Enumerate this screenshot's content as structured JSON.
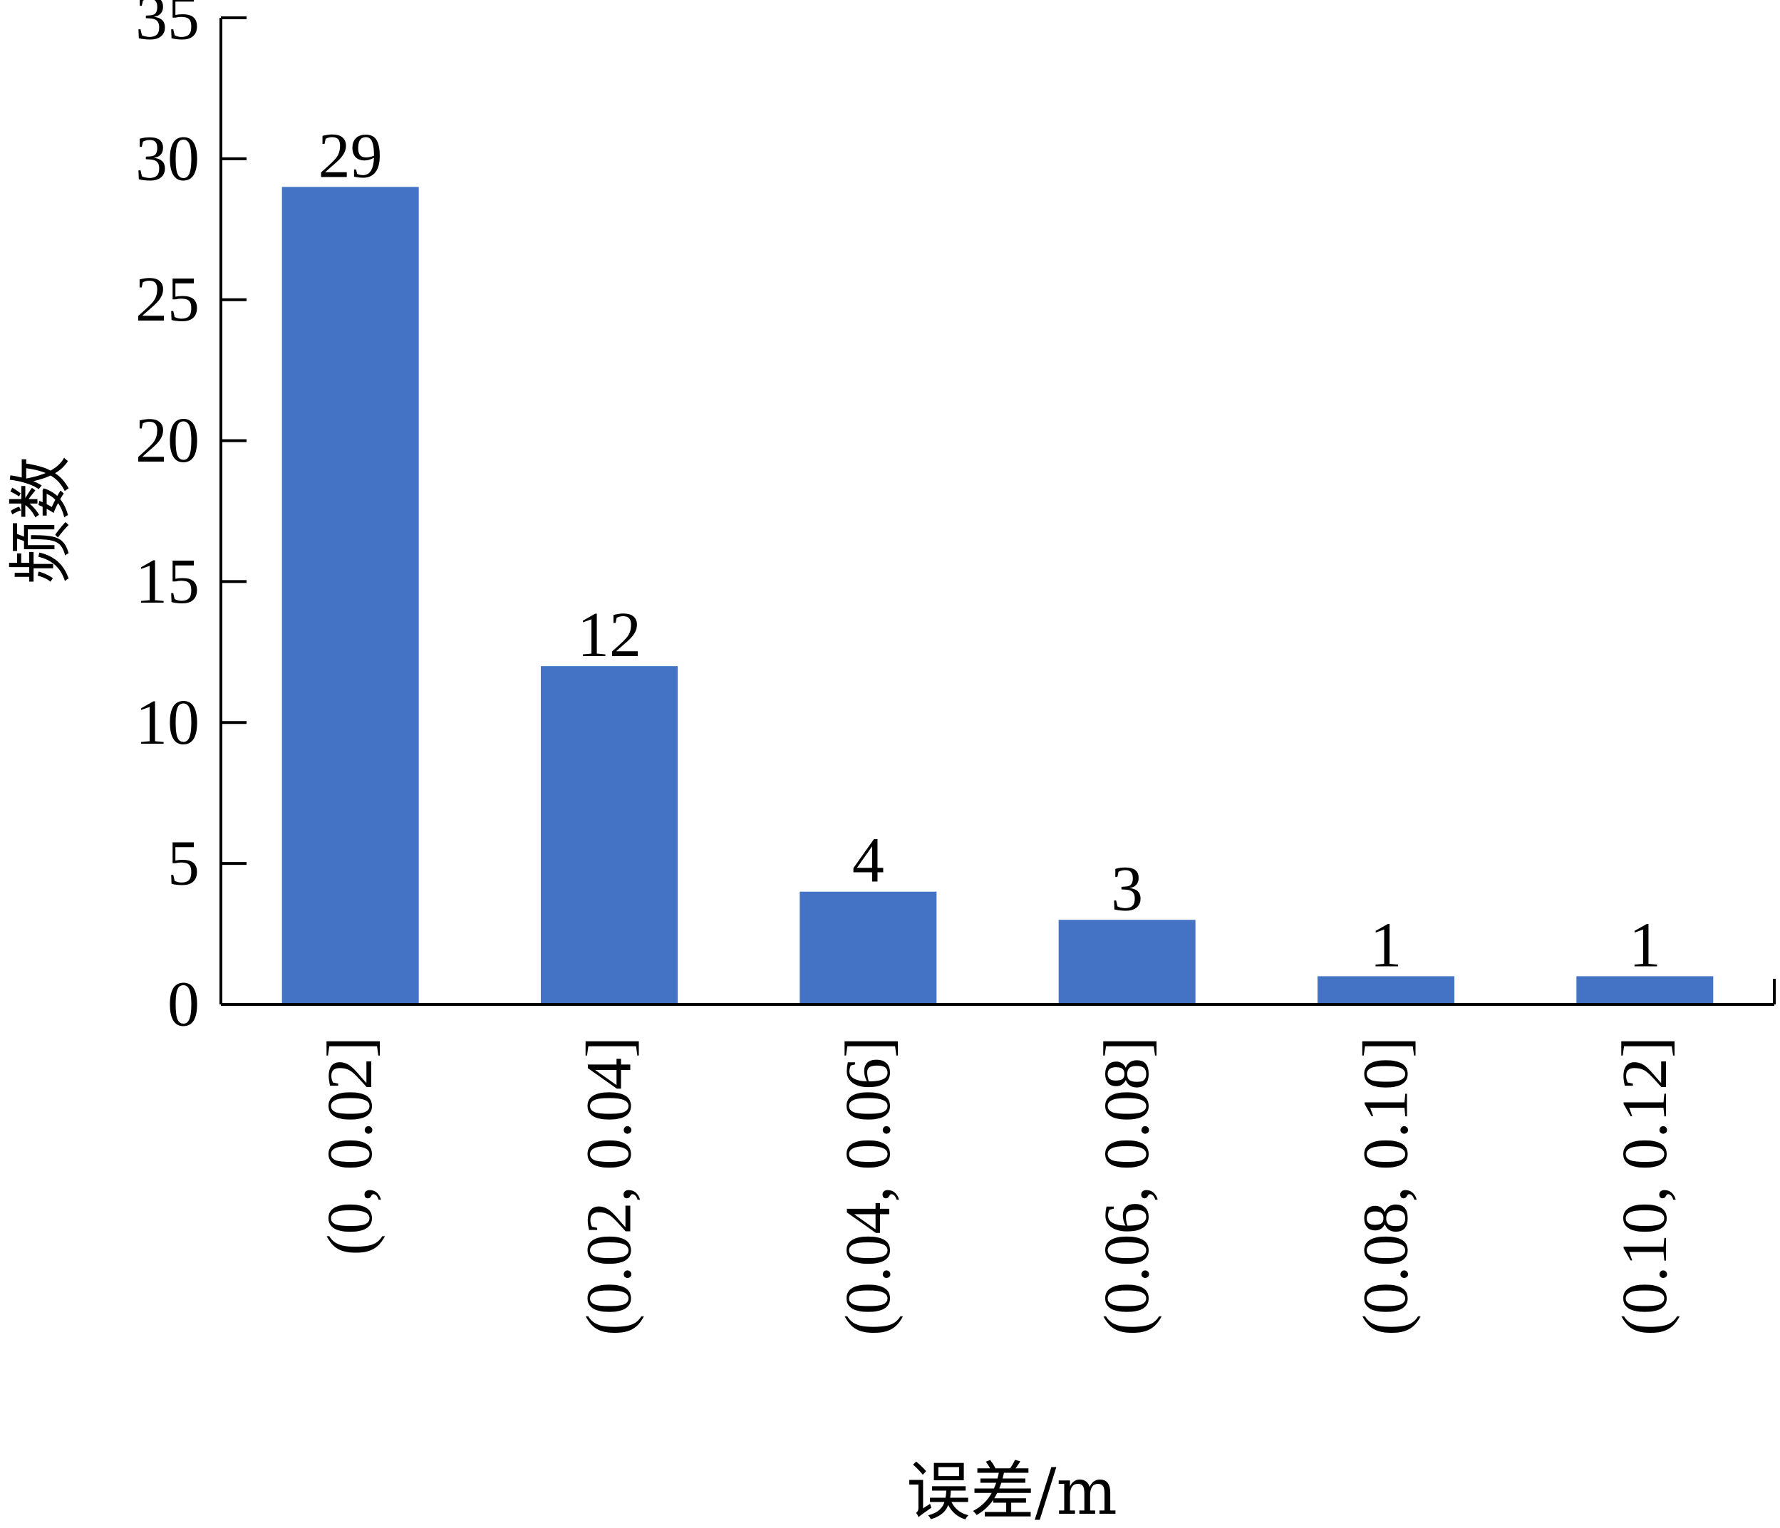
{
  "chart_data": {
    "type": "bar",
    "title": "",
    "xlabel": "误差/m",
    "ylabel": "频数",
    "categories": [
      "(0, 0.02]",
      "(0.02, 0.04]",
      "(0.04, 0.06]",
      "(0.06, 0.08]",
      "(0.08, 0.10]",
      "(0.10, 0.12]"
    ],
    "values": [
      29,
      12,
      4,
      3,
      1,
      1
    ],
    "data_labels": [
      "29",
      "12",
      "4",
      "3",
      "1",
      "1"
    ],
    "ylim": [
      0,
      35
    ],
    "yticks": [
      0,
      5,
      10,
      15,
      20,
      25,
      30,
      35
    ],
    "ytick_labels": [
      "0",
      "5",
      "10",
      "15",
      "20",
      "25",
      "30",
      "35"
    ],
    "grid": false,
    "legend": "none",
    "colors": {
      "bar": "#4472c4",
      "axis": "#000000",
      "text": "#000000"
    }
  }
}
